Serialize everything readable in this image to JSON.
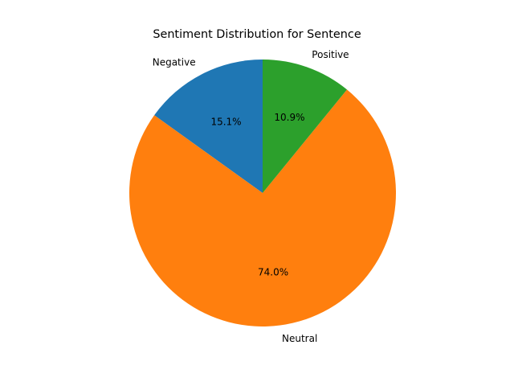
{
  "chart_data": {
    "type": "pie",
    "title": "Sentiment Distribution for Sentence",
    "categories": [
      "Negative",
      "Neutral",
      "Positive"
    ],
    "values": [
      15.1,
      74.0,
      10.9
    ],
    "percent_labels": [
      "15.1%",
      "74.0%",
      "10.9%"
    ],
    "colors": [
      "#1f77b4",
      "#ff7f0e",
      "#2ca02c"
    ],
    "start_angle_deg": 90,
    "direction": "counterclockwise"
  }
}
